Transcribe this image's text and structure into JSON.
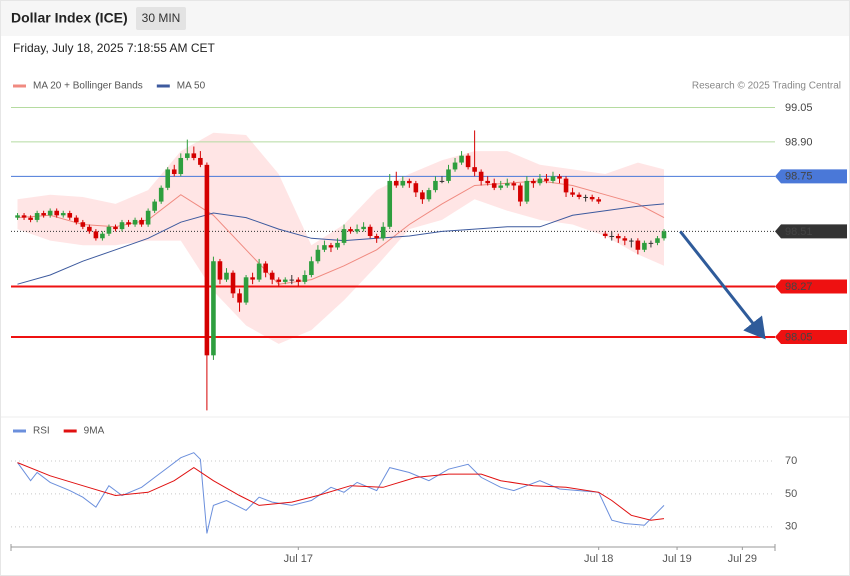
{
  "header": {
    "title": "Dollar Index (ICE)",
    "interval": "30 MIN",
    "timestamp": "Friday, July 18, 2025 7:18:55 AM CET"
  },
  "chart_data": [
    {
      "type": "candlestick",
      "source": "Research © 2025 Trading Central",
      "xlim": [
        -1,
        116
      ],
      "ylim": [
        97.71,
        99.1
      ],
      "up_color": "#2e9e3e",
      "down_color": "#d40000",
      "flat_color": "#333333",
      "ohlc": [
        [
          98.57,
          98.59,
          98.56,
          98.58
        ],
        [
          98.58,
          98.59,
          98.56,
          98.57
        ],
        [
          98.57,
          98.58,
          98.55,
          98.56
        ],
        [
          98.56,
          98.6,
          98.55,
          98.59
        ],
        [
          98.59,
          98.6,
          98.57,
          98.58
        ],
        [
          98.58,
          98.61,
          98.57,
          98.6
        ],
        [
          98.6,
          98.61,
          98.57,
          98.58
        ],
        [
          98.58,
          98.6,
          98.57,
          98.59
        ],
        [
          98.59,
          98.6,
          98.56,
          98.57
        ],
        [
          98.57,
          98.58,
          98.54,
          98.55
        ],
        [
          98.55,
          98.56,
          98.52,
          98.53
        ],
        [
          98.53,
          98.54,
          98.5,
          98.51
        ],
        [
          98.51,
          98.52,
          98.47,
          98.48
        ],
        [
          98.48,
          98.51,
          98.47,
          98.5
        ],
        [
          98.5,
          98.54,
          98.49,
          98.53
        ],
        [
          98.53,
          98.54,
          98.51,
          98.52
        ],
        [
          98.52,
          98.56,
          98.51,
          98.55
        ],
        [
          98.55,
          98.56,
          98.53,
          98.54
        ],
        [
          98.54,
          98.57,
          98.53,
          98.56
        ],
        [
          98.56,
          98.57,
          98.53,
          98.54
        ],
        [
          98.54,
          98.61,
          98.53,
          98.6
        ],
        [
          98.6,
          98.65,
          98.59,
          98.64
        ],
        [
          98.64,
          98.71,
          98.63,
          98.7
        ],
        [
          98.7,
          98.79,
          98.69,
          98.78
        ],
        [
          98.78,
          98.8,
          98.75,
          98.76
        ],
        [
          98.76,
          98.85,
          98.75,
          98.83
        ],
        [
          98.83,
          98.91,
          98.82,
          98.85
        ],
        [
          98.85,
          98.88,
          98.82,
          98.83
        ],
        [
          98.83,
          98.86,
          98.79,
          98.8
        ],
        [
          98.8,
          98.81,
          97.73,
          97.97
        ],
        [
          97.97,
          98.4,
          97.95,
          98.38
        ],
        [
          98.38,
          98.39,
          98.28,
          98.3
        ],
        [
          98.3,
          98.35,
          98.29,
          98.33
        ],
        [
          98.33,
          98.34,
          98.22,
          98.24
        ],
        [
          98.24,
          98.26,
          98.16,
          98.2
        ],
        [
          98.2,
          98.32,
          98.19,
          98.31
        ],
        [
          98.31,
          98.33,
          98.28,
          98.3
        ],
        [
          98.3,
          98.39,
          98.29,
          98.37
        ],
        [
          98.37,
          98.38,
          98.31,
          98.33
        ],
        [
          98.33,
          98.34,
          98.28,
          98.3
        ],
        [
          98.3,
          98.31,
          98.27,
          98.29
        ],
        [
          98.29,
          98.31,
          98.28,
          98.3
        ],
        [
          98.3,
          98.32,
          98.28,
          98.3
        ],
        [
          98.3,
          98.31,
          98.27,
          98.29
        ],
        [
          98.29,
          98.34,
          98.28,
          98.32
        ],
        [
          98.32,
          98.4,
          98.31,
          98.38
        ],
        [
          98.38,
          98.45,
          98.37,
          98.43
        ],
        [
          98.43,
          98.47,
          98.42,
          98.45
        ],
        [
          98.45,
          98.46,
          98.42,
          98.44
        ],
        [
          98.44,
          98.48,
          98.43,
          98.46
        ],
        [
          98.46,
          98.54,
          98.45,
          98.52
        ],
        [
          98.52,
          98.53,
          98.5,
          98.51
        ],
        [
          98.51,
          98.54,
          98.5,
          98.52
        ],
        [
          98.52,
          98.55,
          98.51,
          98.53
        ],
        [
          98.53,
          98.54,
          98.48,
          98.49
        ],
        [
          98.49,
          98.5,
          98.46,
          98.48
        ],
        [
          98.48,
          98.55,
          98.47,
          98.53
        ],
        [
          98.53,
          98.76,
          98.52,
          98.73
        ],
        [
          98.73,
          98.77,
          98.7,
          98.71
        ],
        [
          98.71,
          98.75,
          98.7,
          98.73
        ],
        [
          98.73,
          98.74,
          98.7,
          98.72
        ],
        [
          98.72,
          98.73,
          98.66,
          98.68
        ],
        [
          98.68,
          98.69,
          98.63,
          98.65
        ],
        [
          98.65,
          98.7,
          98.64,
          98.69
        ],
        [
          98.69,
          98.75,
          98.68,
          98.73
        ],
        [
          98.73,
          98.75,
          98.72,
          98.73
        ],
        [
          98.73,
          98.8,
          98.72,
          98.78
        ],
        [
          98.78,
          98.83,
          98.77,
          98.81
        ],
        [
          98.81,
          98.86,
          98.8,
          98.84
        ],
        [
          98.84,
          98.85,
          98.78,
          98.79
        ],
        [
          98.79,
          98.95,
          98.75,
          98.77
        ],
        [
          98.77,
          98.78,
          98.71,
          98.73
        ],
        [
          98.73,
          98.75,
          98.71,
          98.72
        ],
        [
          98.72,
          98.74,
          98.69,
          98.7
        ],
        [
          98.7,
          98.73,
          98.69,
          98.71
        ],
        [
          98.71,
          98.74,
          98.7,
          98.72
        ],
        [
          98.72,
          98.73,
          98.69,
          98.71
        ],
        [
          98.71,
          98.72,
          98.62,
          98.64
        ],
        [
          98.64,
          98.75,
          98.63,
          98.73
        ],
        [
          98.73,
          98.74,
          98.7,
          98.72
        ],
        [
          98.72,
          98.76,
          98.71,
          98.74
        ],
        [
          98.74,
          98.76,
          98.72,
          98.73
        ],
        [
          98.73,
          98.77,
          98.72,
          98.75
        ],
        [
          98.75,
          98.76,
          98.72,
          98.74
        ],
        [
          98.74,
          98.75,
          98.66,
          98.68
        ],
        [
          98.68,
          98.7,
          98.66,
          98.67
        ],
        [
          98.67,
          98.68,
          98.65,
          98.66
        ],
        [
          98.66,
          98.67,
          98.64,
          98.66
        ],
        [
          98.66,
          98.67,
          98.64,
          98.65
        ],
        [
          98.65,
          98.66,
          98.63,
          98.64
        ],
        [
          98.5,
          98.51,
          98.48,
          98.49
        ],
        [
          98.49,
          98.51,
          98.47,
          98.49
        ],
        [
          98.49,
          98.5,
          98.46,
          98.48
        ],
        [
          98.48,
          98.49,
          98.45,
          98.47
        ],
        [
          98.47,
          98.48,
          98.44,
          98.47
        ],
        [
          98.47,
          98.48,
          98.41,
          98.43
        ],
        [
          98.43,
          98.47,
          98.42,
          98.46
        ],
        [
          98.46,
          98.47,
          98.44,
          98.46
        ],
        [
          98.46,
          98.49,
          98.45,
          98.48
        ],
        [
          98.48,
          98.52,
          98.47,
          98.51
        ]
      ],
      "series": [
        {
          "name": "MA 20 + Bollinger Bands",
          "color": "#f08a80",
          "band_color": "#ffe0e0",
          "x": [
            0,
            5,
            10,
            15,
            20,
            25,
            30,
            35,
            40,
            45,
            50,
            55,
            60,
            65,
            70,
            75,
            80,
            85,
            90,
            95,
            99
          ],
          "values": [
            98.57,
            98.58,
            98.54,
            98.53,
            98.56,
            98.67,
            98.58,
            98.43,
            98.28,
            98.3,
            98.36,
            98.43,
            98.54,
            98.63,
            98.71,
            98.72,
            98.73,
            98.71,
            98.67,
            98.63,
            98.57
          ],
          "upper": [
            98.65,
            98.67,
            98.66,
            98.63,
            98.69,
            98.86,
            98.94,
            98.93,
            98.76,
            98.45,
            98.54,
            98.69,
            98.76,
            98.82,
            98.86,
            98.86,
            98.8,
            98.78,
            98.76,
            98.81,
            98.78
          ],
          "lower": [
            98.52,
            98.47,
            98.45,
            98.45,
            98.47,
            98.47,
            98.25,
            98.1,
            98.02,
            98.08,
            98.21,
            98.36,
            98.52,
            98.56,
            98.65,
            98.6,
            98.56,
            98.54,
            98.49,
            98.41,
            98.36
          ]
        },
        {
          "name": "MA 50",
          "color": "#3d5a9e",
          "x": [
            0,
            5,
            10,
            15,
            20,
            25,
            30,
            35,
            40,
            45,
            50,
            55,
            60,
            65,
            70,
            75,
            80,
            85,
            90,
            95,
            99
          ],
          "values": [
            98.28,
            98.32,
            98.38,
            98.43,
            98.48,
            98.55,
            98.59,
            98.57,
            98.52,
            98.48,
            98.47,
            98.48,
            98.49,
            98.51,
            98.52,
            98.53,
            98.53,
            98.58,
            98.6,
            98.62,
            98.63
          ]
        }
      ],
      "levels": [
        {
          "value": 99.05,
          "color": "#b5dba0",
          "text_color": "#5aa02c",
          "line": "solid",
          "width": 1,
          "box": false
        },
        {
          "value": 98.9,
          "label": "98.90",
          "color": "#b5dba0",
          "text_color": "#5aa02c",
          "line": "solid",
          "width": 1,
          "box": false
        },
        {
          "value": 98.75,
          "color": "#4a78d8",
          "text_color": "#ffffff",
          "line": "solid",
          "width": 1,
          "box": true
        },
        {
          "value": 98.51,
          "color": "#333333",
          "text_color": "#ffffff",
          "line": "dotted",
          "width": 1,
          "box": true
        },
        {
          "value": 98.27,
          "color": "#ee1111",
          "text_color": "#ffffff",
          "line": "solid",
          "width": 2,
          "box": true
        },
        {
          "value": 98.05,
          "color": "#ee1111",
          "text_color": "#ffffff",
          "line": "solid",
          "width": 2,
          "box": true
        }
      ],
      "forecast": {
        "color": "#2f5b9a",
        "x": [
          101.5,
          114
        ],
        "values": [
          98.51,
          98.06
        ]
      }
    },
    {
      "type": "line",
      "xlim": [
        -1,
        116
      ],
      "ylim": [
        22,
        80
      ],
      "yticks": [
        70,
        50,
        30
      ],
      "grid": true,
      "xticks": [
        {
          "value": 43,
          "label": "Jul 17"
        },
        {
          "value": 89,
          "label": "Jul 18"
        },
        {
          "value": 101,
          "label": "Jul 19"
        },
        {
          "value": 111,
          "label": "Jul 29"
        }
      ],
      "series": [
        {
          "name": "RSI",
          "color": "#6b8fdc",
          "x": [
            0,
            2,
            3,
            5,
            8,
            10,
            12,
            14,
            16,
            19,
            21,
            23,
            25,
            27,
            28,
            29,
            30,
            32,
            35,
            37,
            39,
            42,
            45,
            48,
            50,
            52,
            55,
            57,
            60,
            63,
            66,
            69,
            71,
            74,
            76,
            80,
            83,
            86,
            89,
            91,
            93,
            96,
            99
          ],
          "values": [
            69,
            58,
            63,
            57,
            52,
            48,
            42,
            55,
            49,
            54,
            60,
            66,
            72,
            75,
            71,
            26,
            43,
            46,
            40,
            48,
            45,
            43,
            46,
            54,
            51,
            57,
            52,
            66,
            63,
            58,
            65,
            68,
            60,
            54,
            52,
            58,
            53,
            52,
            51,
            34,
            32,
            31,
            43
          ]
        },
        {
          "name": "9MA",
          "color": "#e01010",
          "x": [
            0,
            5,
            10,
            15,
            20,
            24,
            27,
            30,
            34,
            37,
            42,
            46,
            51,
            56,
            61,
            66,
            71,
            74,
            79,
            84,
            89,
            91,
            94,
            97,
            99
          ],
          "values": [
            69,
            61,
            55,
            49,
            51,
            58,
            66,
            58,
            49,
            43,
            45,
            49,
            55,
            54,
            60,
            62,
            62,
            58,
            55,
            54,
            51,
            46,
            37,
            34,
            35
          ]
        }
      ]
    }
  ]
}
